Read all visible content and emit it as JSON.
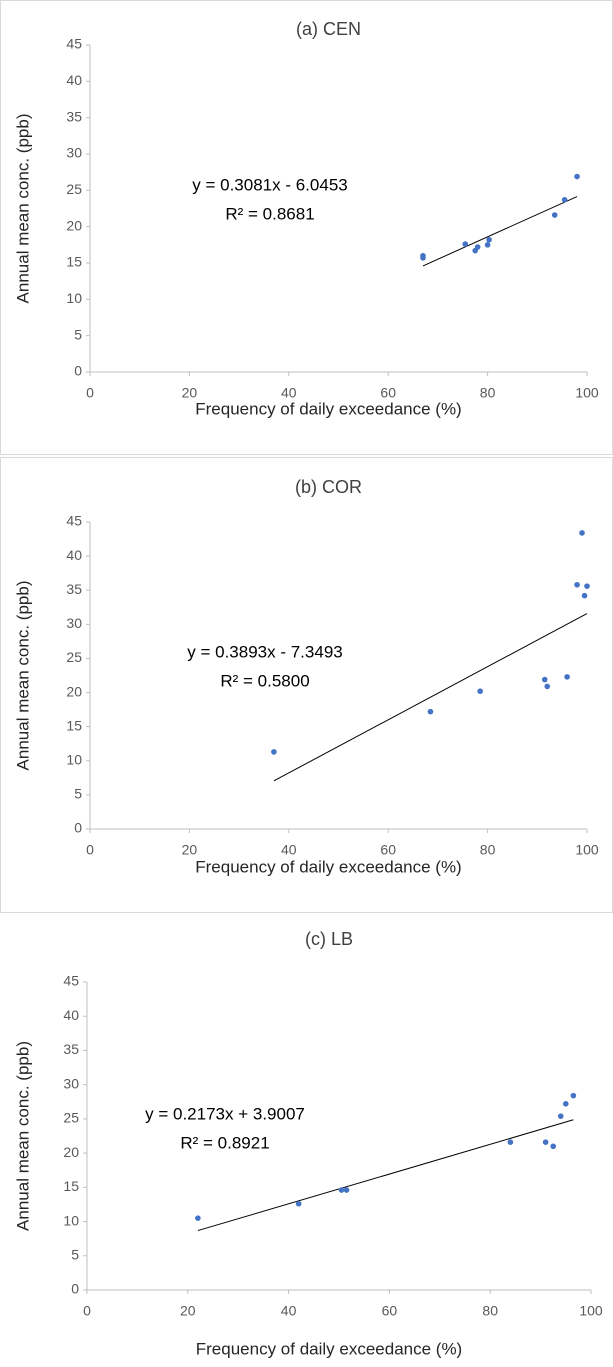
{
  "chart_data": [
    {
      "type": "scatter",
      "title": "(a) CEN",
      "x_label": "Frequency of daily exceedance (%)",
      "y_label": "Annual mean conc. (ppb)",
      "xlim": [
        0,
        100
      ],
      "ylim": [
        0,
        45
      ],
      "xticks": [
        0,
        20,
        40,
        60,
        80,
        100
      ],
      "yticks": [
        0,
        5,
        10,
        15,
        20,
        25,
        30,
        35,
        40,
        45
      ],
      "series": [
        {
          "color": "#4472c4",
          "x": [
            67,
            67,
            75.5,
            77.5,
            78,
            80,
            80.3,
            93.5,
            95.5,
            98
          ],
          "values": [
            16.0,
            15.7,
            17.6,
            16.7,
            17.2,
            17.5,
            18.2,
            21.6,
            23.7,
            26.9
          ]
        }
      ],
      "trendline": {
        "slope": 0.3081,
        "intercept": -6.0453,
        "equation": "y = 0.3081x - 6.0453",
        "r2": "R² = 0.8681"
      }
    },
    {
      "type": "scatter",
      "title": "(b) COR",
      "x_label": "Frequency of daily exceedance (%)",
      "y_label": "Annual mean conc. (ppb)",
      "xlim": [
        0,
        100
      ],
      "ylim": [
        0,
        45
      ],
      "xticks": [
        0,
        20,
        40,
        60,
        80,
        100
      ],
      "yticks": [
        0,
        5,
        10,
        15,
        20,
        25,
        30,
        35,
        40,
        45
      ],
      "series": [
        {
          "color": "#4472c4",
          "x": [
            37,
            68.5,
            78.5,
            91.5,
            92,
            96,
            98,
            99,
            99.5,
            100
          ],
          "values": [
            11.3,
            17.2,
            20.2,
            21.9,
            20.9,
            22.3,
            35.8,
            43.4,
            34.2,
            35.6
          ]
        }
      ],
      "trendline": {
        "slope": 0.3893,
        "intercept": -7.3493,
        "equation": "y = 0.3893x - 7.3493",
        "r2": "R² = 0.5800"
      }
    },
    {
      "type": "scatter",
      "title": "(c) LB",
      "x_label": "Frequency of daily exceedance (%)",
      "y_label": "Annual mean conc. (ppb)",
      "xlim": [
        0,
        100
      ],
      "ylim": [
        0,
        45
      ],
      "xticks": [
        0,
        20,
        40,
        60,
        80,
        100
      ],
      "yticks": [
        0,
        5,
        10,
        15,
        20,
        25,
        30,
        35,
        40,
        45
      ],
      "series": [
        {
          "color": "#4472c4",
          "x": [
            22,
            42,
            50.5,
            51.5,
            84,
            91,
            92.5,
            94,
            95,
            96.5
          ],
          "values": [
            10.5,
            12.6,
            14.6,
            14.6,
            21.6,
            21.6,
            21.0,
            25.4,
            27.2,
            28.4
          ]
        }
      ],
      "trendline": {
        "slope": 0.2173,
        "intercept": 3.9007,
        "equation": "y = 0.2173x + 3.9007",
        "r2": "R² = 0.8921"
      }
    }
  ]
}
